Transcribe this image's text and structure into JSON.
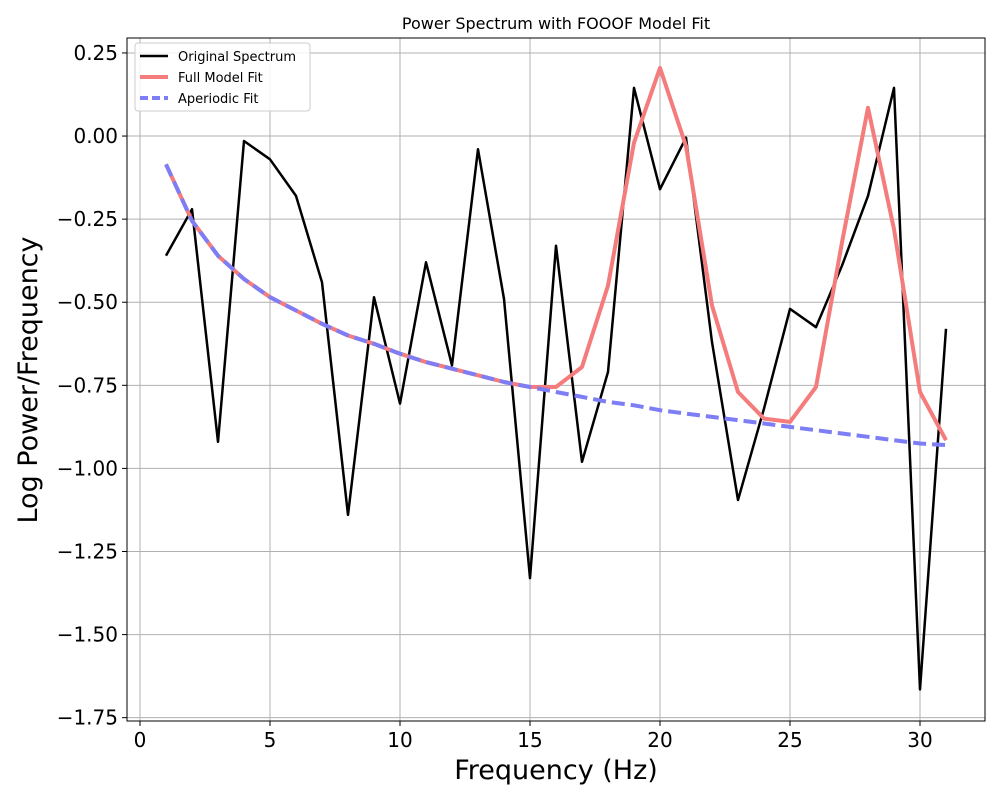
{
  "chart_data": {
    "type": "line",
    "title": "Power Spectrum with FOOOF Model Fit",
    "xlabel": "Frequency (Hz)",
    "ylabel": "Log Power/Frequency",
    "xlim": [
      -0.5,
      32.5
    ],
    "ylim": [
      -1.76,
      0.295
    ],
    "xticks": [
      0,
      5,
      10,
      15,
      20,
      25,
      30
    ],
    "xtick_labels": [
      "0",
      "5",
      "10",
      "15",
      "20",
      "25",
      "30"
    ],
    "yticks": [
      0.25,
      0.0,
      -0.25,
      -0.5,
      -0.75,
      -1.0,
      -1.25,
      -1.5,
      -1.75
    ],
    "ytick_labels": [
      "0.25",
      "0.00",
      "−0.25",
      "−0.50",
      "−0.75",
      "−1.00",
      "−1.25",
      "−1.50",
      "−1.75"
    ],
    "grid": true,
    "legend_position": "top-left",
    "x": [
      1,
      2,
      3,
      4,
      5,
      6,
      7,
      8,
      9,
      10,
      11,
      12,
      13,
      14,
      15,
      16,
      17,
      18,
      19,
      20,
      21,
      22,
      23,
      24,
      25,
      26,
      27,
      28,
      29,
      30,
      31
    ],
    "series": [
      {
        "name": "Original Spectrum",
        "color": "#000000",
        "style": "solid",
        "values": [
          -0.36,
          -0.22,
          -0.92,
          -0.015,
          -0.07,
          -0.18,
          -0.44,
          -1.14,
          -0.485,
          -0.805,
          -0.38,
          -0.69,
          -0.04,
          -0.49,
          -1.33,
          -0.33,
          -0.98,
          -0.71,
          0.145,
          -0.16,
          -0.005,
          -0.62,
          -1.095,
          -0.82,
          -0.52,
          -0.575,
          -0.39,
          -0.18,
          0.145,
          -1.665,
          -0.58
        ]
      },
      {
        "name": "Full Model Fit",
        "color": "#f47c7c",
        "style": "solid",
        "values": [
          -0.085,
          -0.255,
          -0.36,
          -0.43,
          -0.485,
          -0.525,
          -0.565,
          -0.6,
          -0.625,
          -0.655,
          -0.68,
          -0.7,
          -0.72,
          -0.74,
          -0.755,
          -0.755,
          -0.695,
          -0.45,
          -0.02,
          0.205,
          -0.03,
          -0.51,
          -0.77,
          -0.85,
          -0.86,
          -0.755,
          -0.32,
          0.085,
          -0.28,
          -0.77,
          -0.915
        ]
      },
      {
        "name": "Aperiodic Fit",
        "color": "#7d7df5",
        "style": "dashed",
        "values": [
          -0.085,
          -0.255,
          -0.36,
          -0.43,
          -0.485,
          -0.525,
          -0.565,
          -0.6,
          -0.625,
          -0.655,
          -0.68,
          -0.7,
          -0.72,
          -0.74,
          -0.755,
          -0.77,
          -0.785,
          -0.8,
          -0.81,
          -0.825,
          -0.835,
          -0.845,
          -0.855,
          -0.865,
          -0.875,
          -0.885,
          -0.895,
          -0.905,
          -0.915,
          -0.925,
          -0.93
        ]
      }
    ]
  }
}
